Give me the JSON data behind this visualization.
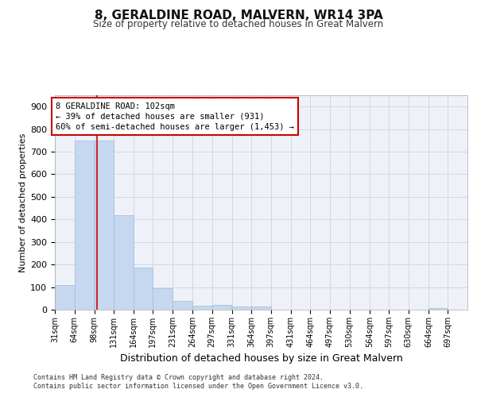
{
  "title": "8, GERALDINE ROAD, MALVERN, WR14 3PA",
  "subtitle": "Size of property relative to detached houses in Great Malvern",
  "xlabel": "Distribution of detached houses by size in Great Malvern",
  "ylabel": "Number of detached properties",
  "footnote1": "Contains HM Land Registry data © Crown copyright and database right 2024.",
  "footnote2": "Contains public sector information licensed under the Open Government Licence v3.0.",
  "property_line": 102,
  "property_label": "8 GERALDINE ROAD: 102sqm",
  "annotation_line1": "← 39% of detached houses are smaller (931)",
  "annotation_line2": "60% of semi-detached houses are larger (1,453) →",
  "bar_color": "#c5d8f0",
  "bar_edge_color": "#a0bcd8",
  "line_color": "#cc0000",
  "annotation_box_color": "#cc0000",
  "grid_color": "#d0d8e8",
  "background_color": "#eef2f8",
  "bin_labels": [
    "31sqm",
    "64sqm",
    "98sqm",
    "131sqm",
    "164sqm",
    "197sqm",
    "231sqm",
    "264sqm",
    "297sqm",
    "331sqm",
    "364sqm",
    "397sqm",
    "431sqm",
    "464sqm",
    "497sqm",
    "530sqm",
    "564sqm",
    "597sqm",
    "630sqm",
    "664sqm",
    "697sqm"
  ],
  "bin_edges": [
    31,
    64,
    98,
    131,
    164,
    197,
    231,
    264,
    297,
    331,
    364,
    397,
    431,
    464,
    497,
    530,
    564,
    597,
    630,
    664,
    697,
    730
  ],
  "bar_heights": [
    110,
    748,
    750,
    418,
    185,
    95,
    40,
    18,
    20,
    15,
    13,
    0,
    0,
    0,
    0,
    0,
    0,
    0,
    0,
    8,
    0
  ],
  "ylim": [
    0,
    950
  ],
  "yticks": [
    0,
    100,
    200,
    300,
    400,
    500,
    600,
    700,
    800,
    900
  ]
}
